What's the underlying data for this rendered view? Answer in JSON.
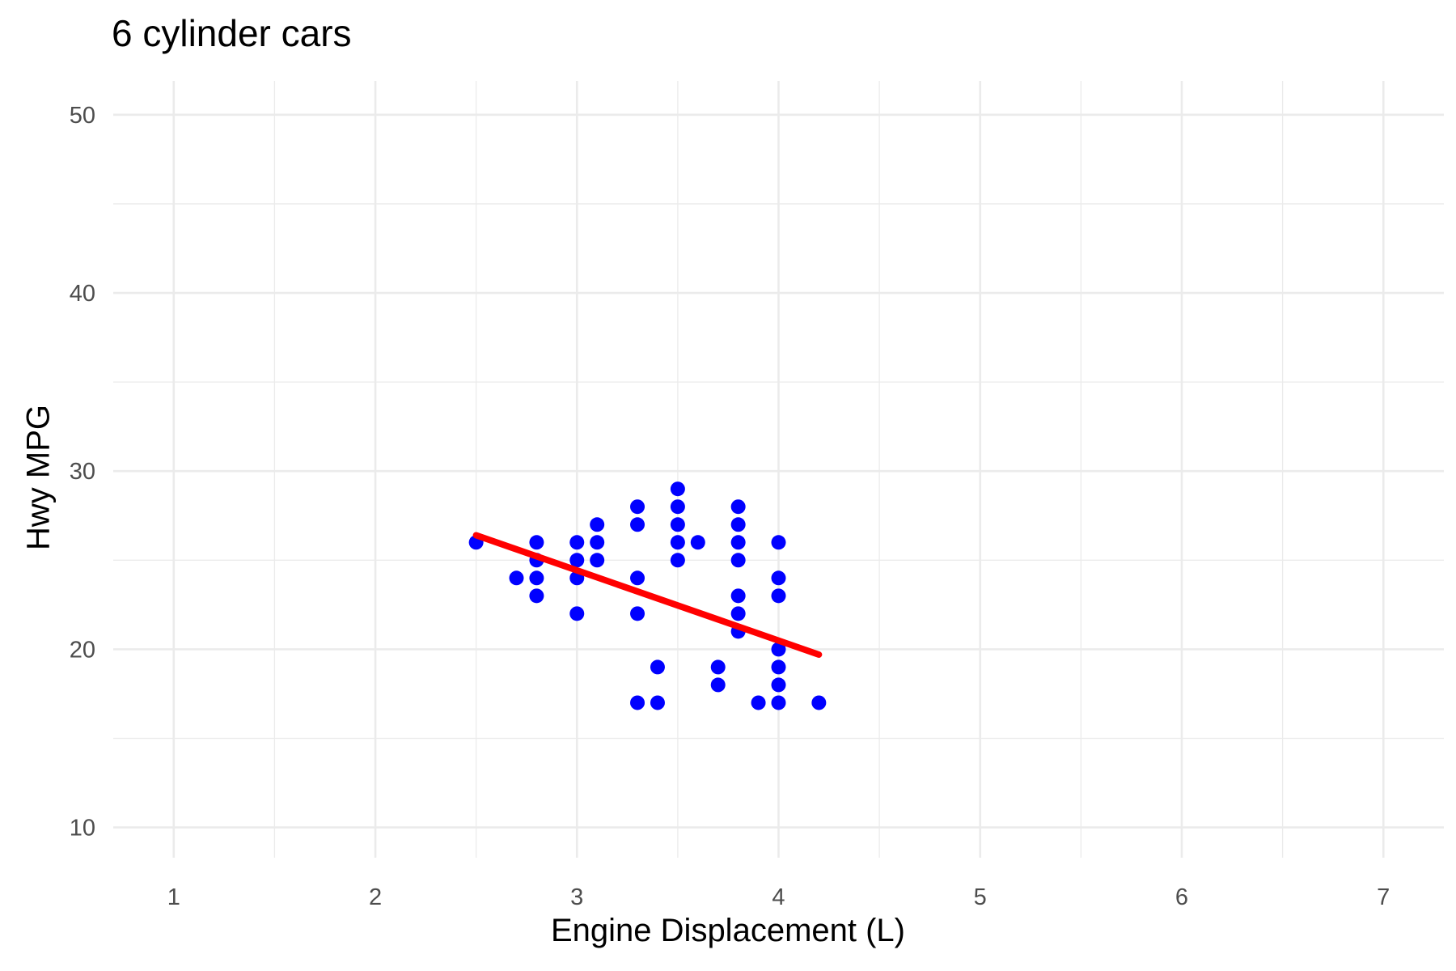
{
  "chart_data": {
    "type": "scatter",
    "title": "6 cylinder cars",
    "xlabel": "Engine Displacement (L)",
    "ylabel": "Hwy MPG",
    "xlim": [
      0.7,
      7.3
    ],
    "ylim": [
      8.3,
      51.9
    ],
    "x_ticks": [
      1,
      2,
      3,
      4,
      5,
      6,
      7
    ],
    "y_ticks": [
      10,
      20,
      30,
      40,
      50
    ],
    "grid": true,
    "legend": "none",
    "colors": {
      "points": "#0000ff",
      "trend": "#ff0000",
      "grid": "#ebebeb",
      "tick_text": "#4d4d4d"
    },
    "series": [
      {
        "type": "scatter",
        "points": [
          [
            2.5,
            26
          ],
          [
            2.7,
            24
          ],
          [
            2.8,
            26
          ],
          [
            2.8,
            25
          ],
          [
            2.8,
            24
          ],
          [
            2.8,
            23
          ],
          [
            3.0,
            26
          ],
          [
            3.0,
            25
          ],
          [
            3.0,
            24
          ],
          [
            3.0,
            22
          ],
          [
            3.1,
            27
          ],
          [
            3.1,
            26
          ],
          [
            3.1,
            25
          ],
          [
            3.3,
            28
          ],
          [
            3.3,
            27
          ],
          [
            3.3,
            24
          ],
          [
            3.3,
            22
          ],
          [
            3.3,
            17
          ],
          [
            3.4,
            19
          ],
          [
            3.4,
            17
          ],
          [
            3.5,
            29
          ],
          [
            3.5,
            28
          ],
          [
            3.5,
            27
          ],
          [
            3.5,
            26
          ],
          [
            3.5,
            25
          ],
          [
            3.6,
            26
          ],
          [
            3.7,
            19
          ],
          [
            3.7,
            18
          ],
          [
            3.8,
            28
          ],
          [
            3.8,
            27
          ],
          [
            3.8,
            26
          ],
          [
            3.8,
            25
          ],
          [
            3.8,
            23
          ],
          [
            3.8,
            22
          ],
          [
            3.8,
            21
          ],
          [
            3.9,
            17
          ],
          [
            4.0,
            26
          ],
          [
            4.0,
            24
          ],
          [
            4.0,
            23
          ],
          [
            4.0,
            20
          ],
          [
            4.0,
            19
          ],
          [
            4.0,
            18
          ],
          [
            4.0,
            17
          ],
          [
            4.2,
            17
          ]
        ]
      },
      {
        "type": "line",
        "points": [
          [
            2.5,
            26.4
          ],
          [
            4.2,
            19.7
          ]
        ]
      }
    ]
  }
}
